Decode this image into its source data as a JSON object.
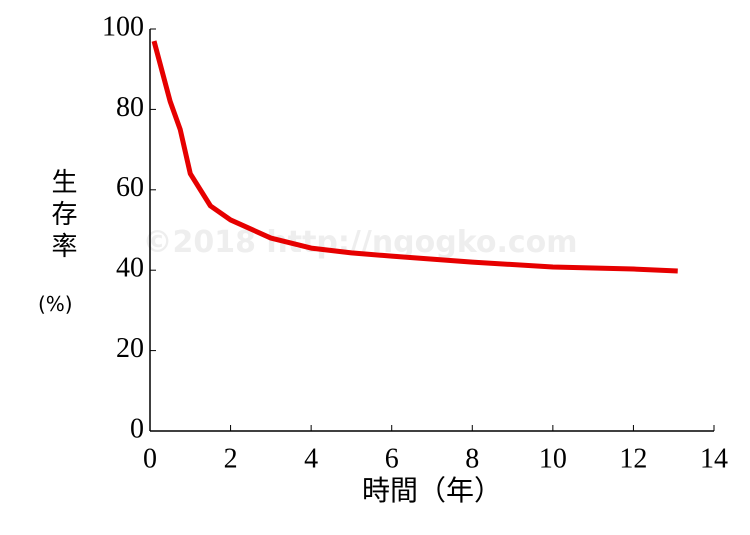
{
  "chart_data": {
    "type": "line",
    "x": [
      0.1,
      0.5,
      0.75,
      1,
      1.5,
      2,
      3,
      4,
      5,
      6,
      8,
      10,
      12,
      13.1
    ],
    "series": [
      {
        "name": "生存率",
        "color": "#e60000",
        "values": [
          97,
          82,
          75,
          64,
          56,
          52.5,
          48,
          45.5,
          44.3,
          43.5,
          42,
          40.8,
          40.3,
          39.8
        ]
      }
    ],
    "xlabel": "時間（年）",
    "ylabel": "生存率",
    "ylabel_unit": "(%)",
    "watermark": "©2018 http://ngogko.com",
    "xlim": [
      0,
      14
    ],
    "xticks": [
      0,
      2,
      4,
      6,
      8,
      10,
      12,
      14
    ],
    "ylim": [
      0,
      100
    ],
    "yticks": [
      0,
      20,
      40,
      60,
      80,
      100
    ]
  }
}
